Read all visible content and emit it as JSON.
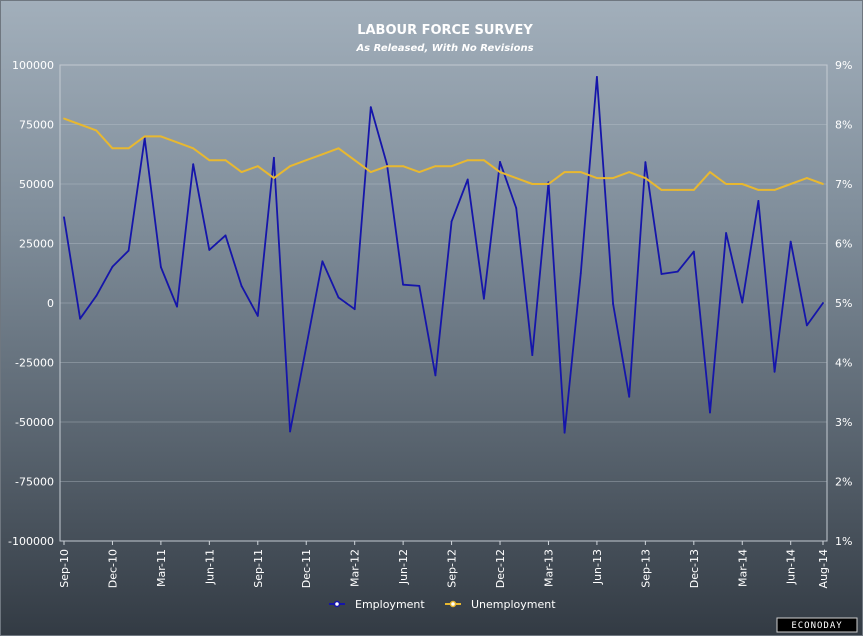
{
  "chart_data": {
    "type": "line",
    "title": "LABOUR FORCE SURVEY",
    "subtitle": "As Released, With No Revisions",
    "x": [
      "Sep-10",
      "Oct-10",
      "Nov-10",
      "Dec-10",
      "Jan-11",
      "Feb-11",
      "Mar-11",
      "Apr-11",
      "May-11",
      "Jun-11",
      "Jul-11",
      "Aug-11",
      "Sep-11",
      "Oct-11",
      "Nov-11",
      "Dec-11",
      "Jan-12",
      "Feb-12",
      "Mar-12",
      "Apr-12",
      "May-12",
      "Jun-12",
      "Jul-12",
      "Aug-12",
      "Sep-12",
      "Oct-12",
      "Nov-12",
      "Dec-12",
      "Jan-13",
      "Feb-13",
      "Mar-13",
      "Apr-13",
      "May-13",
      "Jun-13",
      "Jul-13",
      "Aug-13",
      "Sep-13",
      "Oct-13",
      "Nov-13",
      "Dec-13",
      "Jan-14",
      "Feb-14",
      "Mar-14",
      "Apr-14",
      "May-14",
      "Jun-14",
      "Jul-14",
      "Aug-14"
    ],
    "x_tick_labels": [
      "Sep-10",
      "Dec-10",
      "Mar-11",
      "Jun-11",
      "Sep-11",
      "Dec-11",
      "Mar-12",
      "Jun-12",
      "Sep-12",
      "Dec-12",
      "Mar-13",
      "Jun-13",
      "Sep-13",
      "Dec-13",
      "Mar-14",
      "Jun-14",
      "Aug-14"
    ],
    "y_left": {
      "ticks": [
        "100000",
        "75000",
        "50000",
        "25000",
        "0",
        "-25000",
        "-50000",
        "-75000",
        "-100000"
      ],
      "range": [
        -100000,
        100000
      ]
    },
    "y_right": {
      "ticks": [
        "9%",
        "8%",
        "7%",
        "6%",
        "5%",
        "4%",
        "3%",
        "2%",
        "1%"
      ],
      "range": [
        1,
        9
      ]
    },
    "grid": true,
    "legend_position": "bottom-center",
    "series": [
      {
        "name": "Employment",
        "axis": "left",
        "color": "#1515aa",
        "values": [
          36000,
          -6600,
          3000,
          15200,
          22000,
          69200,
          15100,
          -1500,
          58300,
          22300,
          28400,
          7100,
          -5400,
          61000,
          -54000,
          -18500,
          17500,
          2300,
          -2600,
          82300,
          58200,
          7700,
          7200,
          -30400,
          34300,
          51900,
          1800,
          59300,
          39900,
          -21900,
          50700,
          -54500,
          12500,
          95000,
          -400,
          -39400,
          59200,
          12200,
          13200,
          21600,
          -46000,
          29400,
          200,
          42900,
          -28900,
          25800,
          -9400,
          0
        ]
      },
      {
        "name": "Unemployment",
        "axis": "right",
        "color": "#e8b830",
        "values": [
          8.1,
          8.0,
          7.9,
          7.6,
          7.6,
          7.8,
          7.8,
          7.7,
          7.6,
          7.4,
          7.4,
          7.2,
          7.3,
          7.1,
          7.3,
          7.4,
          7.5,
          7.6,
          7.4,
          7.2,
          7.3,
          7.3,
          7.2,
          7.3,
          7.3,
          7.4,
          7.4,
          7.2,
          7.1,
          7.0,
          7.0,
          7.2,
          7.2,
          7.1,
          7.1,
          7.2,
          7.1,
          6.9,
          6.9,
          6.9,
          7.2,
          7.0,
          7.0,
          6.9,
          6.9,
          7.0,
          7.1,
          7.0
        ]
      }
    ]
  },
  "legend": {
    "employment": "Employment",
    "unemployment": "Unemployment"
  },
  "logo": "ECONODAY"
}
